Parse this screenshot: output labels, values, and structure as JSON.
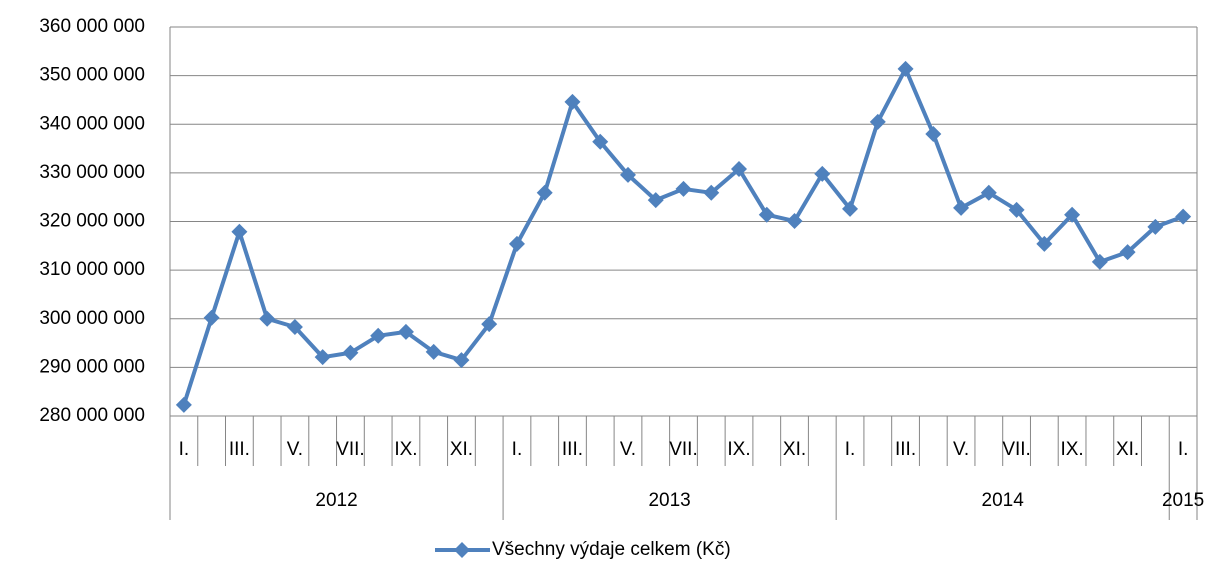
{
  "chart_data": {
    "type": "line",
    "categories": [
      "I.",
      null,
      "III.",
      null,
      "V.",
      null,
      "VII.",
      null,
      "IX.",
      null,
      "XI.",
      null,
      "I.",
      null,
      "III.",
      null,
      "V.",
      null,
      "VII.",
      null,
      "IX.",
      null,
      "XI.",
      null,
      "I.",
      null,
      "III.",
      null,
      "V.",
      null,
      "VII.",
      null,
      "IX.",
      null,
      "XI.",
      null,
      "I."
    ],
    "years": [
      "2012",
      "2013",
      "2014",
      "2015"
    ],
    "series": [
      {
        "name": "Všechny výdaje celkem (Kč)",
        "color": "#4f81bd",
        "values": [
          282300000,
          300200000,
          317900000,
          300000000,
          298300000,
          292100000,
          293000000,
          296500000,
          297300000,
          293200000,
          291500000,
          298900000,
          315400000,
          325900000,
          344600000,
          336400000,
          329600000,
          324400000,
          326700000,
          325900000,
          330800000,
          321400000,
          320100000,
          329800000,
          322600000,
          340500000,
          351400000,
          338000000,
          322800000,
          325900000,
          322400000,
          315400000,
          321400000,
          311700000,
          313700000,
          318900000,
          321000000
        ]
      }
    ],
    "ylim": [
      280000000,
      360000000
    ],
    "yticks": [
      {
        "value": 280000000,
        "label": "280 000 000"
      },
      {
        "value": 290000000,
        "label": "290 000 000"
      },
      {
        "value": 300000000,
        "label": "300 000 000"
      },
      {
        "value": 310000000,
        "label": "310 000 000"
      },
      {
        "value": 320000000,
        "label": "320 000 000"
      },
      {
        "value": 330000000,
        "label": "330 000 000"
      },
      {
        "value": 340000000,
        "label": "340 000 000"
      },
      {
        "value": 350000000,
        "label": "350 000 000"
      },
      {
        "value": 360000000,
        "label": "360 000 000"
      }
    ],
    "grid": true,
    "legend": "bottom"
  }
}
